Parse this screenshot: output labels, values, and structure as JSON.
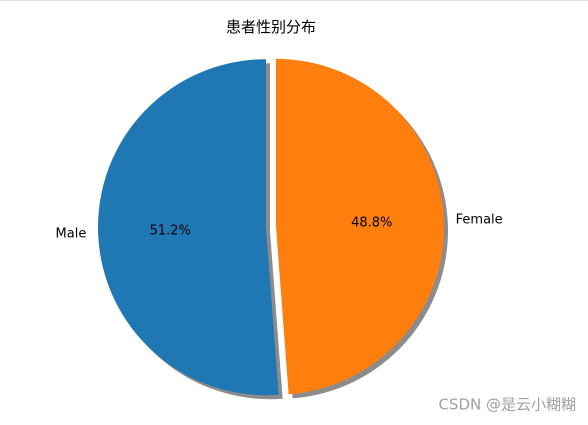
{
  "chart_data": {
    "type": "pie",
    "title": "患者性别分布",
    "categories": [
      "Male",
      "Female"
    ],
    "values": [
      51.2,
      48.8
    ],
    "value_labels": [
      "51.2%",
      "48.8%"
    ],
    "colors": [
      "#1f77b4",
      "#ff7f0e"
    ],
    "shadow": true
  },
  "watermark": "CSDN @是云小糊糊"
}
